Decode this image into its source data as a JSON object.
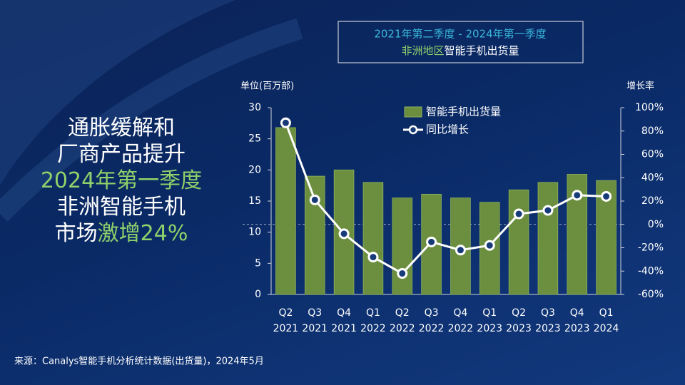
{
  "slide": {
    "title_box": {
      "line1": "2021年第二季度 - 2024年第一季度",
      "line2_highlight": "非洲地区",
      "line2_rest": "智能手机出货量"
    },
    "headline": [
      [
        {
          "text": "通胀缓解和"
        }
      ],
      [
        {
          "text": "厂商产品提升"
        }
      ],
      [
        {
          "text": "2024年第一季度",
          "highlight": true
        }
      ],
      [
        {
          "text": "非洲智能手机"
        }
      ],
      [
        {
          "text": "市场"
        },
        {
          "text": "激增24%",
          "highlight": true
        }
      ]
    ],
    "highlight_color": "#8fd16a",
    "source": "来源：Canalys智能手机分析统计数据(出货量)，2024年5月"
  },
  "chart_data": {
    "type": "bar",
    "y_label": "单位(百万部)",
    "y2_label": "增长率",
    "categories": [
      "Q2 2021",
      "Q3 2021",
      "Q4 2021",
      "Q1 2022",
      "Q2 2022",
      "Q3 2022",
      "Q4 2022",
      "Q1 2023",
      "Q2 2023",
      "Q3 2023",
      "Q4 2023",
      "Q1 2024"
    ],
    "series": [
      {
        "name": "智能手机出货量",
        "color": "#6b8f3e",
        "values": [
          26.8,
          19.0,
          20.0,
          18.0,
          15.5,
          16.1,
          15.5,
          14.8,
          16.8,
          18.0,
          19.3,
          18.3
        ]
      },
      {
        "name": "同比增长",
        "color": "#ffffff",
        "type": "line",
        "axis": "y2",
        "values": [
          87,
          21,
          -8,
          -28,
          -42,
          -15,
          -22,
          -18,
          9,
          12,
          25,
          24
        ]
      }
    ],
    "ylim": [
      0,
      30
    ],
    "yticks": [
      0,
      5,
      10,
      15,
      20,
      25,
      30
    ],
    "y2lim": [
      -60,
      100
    ],
    "y2ticks": [
      {
        "value": -60,
        "label": "-60%"
      },
      {
        "value": -40,
        "label": "-40%"
      },
      {
        "value": -20,
        "label": "-20%"
      },
      {
        "value": 0,
        "label": "0%"
      },
      {
        "value": 20,
        "label": "20%"
      },
      {
        "value": 40,
        "label": "40%"
      },
      {
        "value": 60,
        "label": "60%"
      },
      {
        "value": 80,
        "label": "80%"
      },
      {
        "value": 100,
        "label": "100%"
      }
    ]
  }
}
